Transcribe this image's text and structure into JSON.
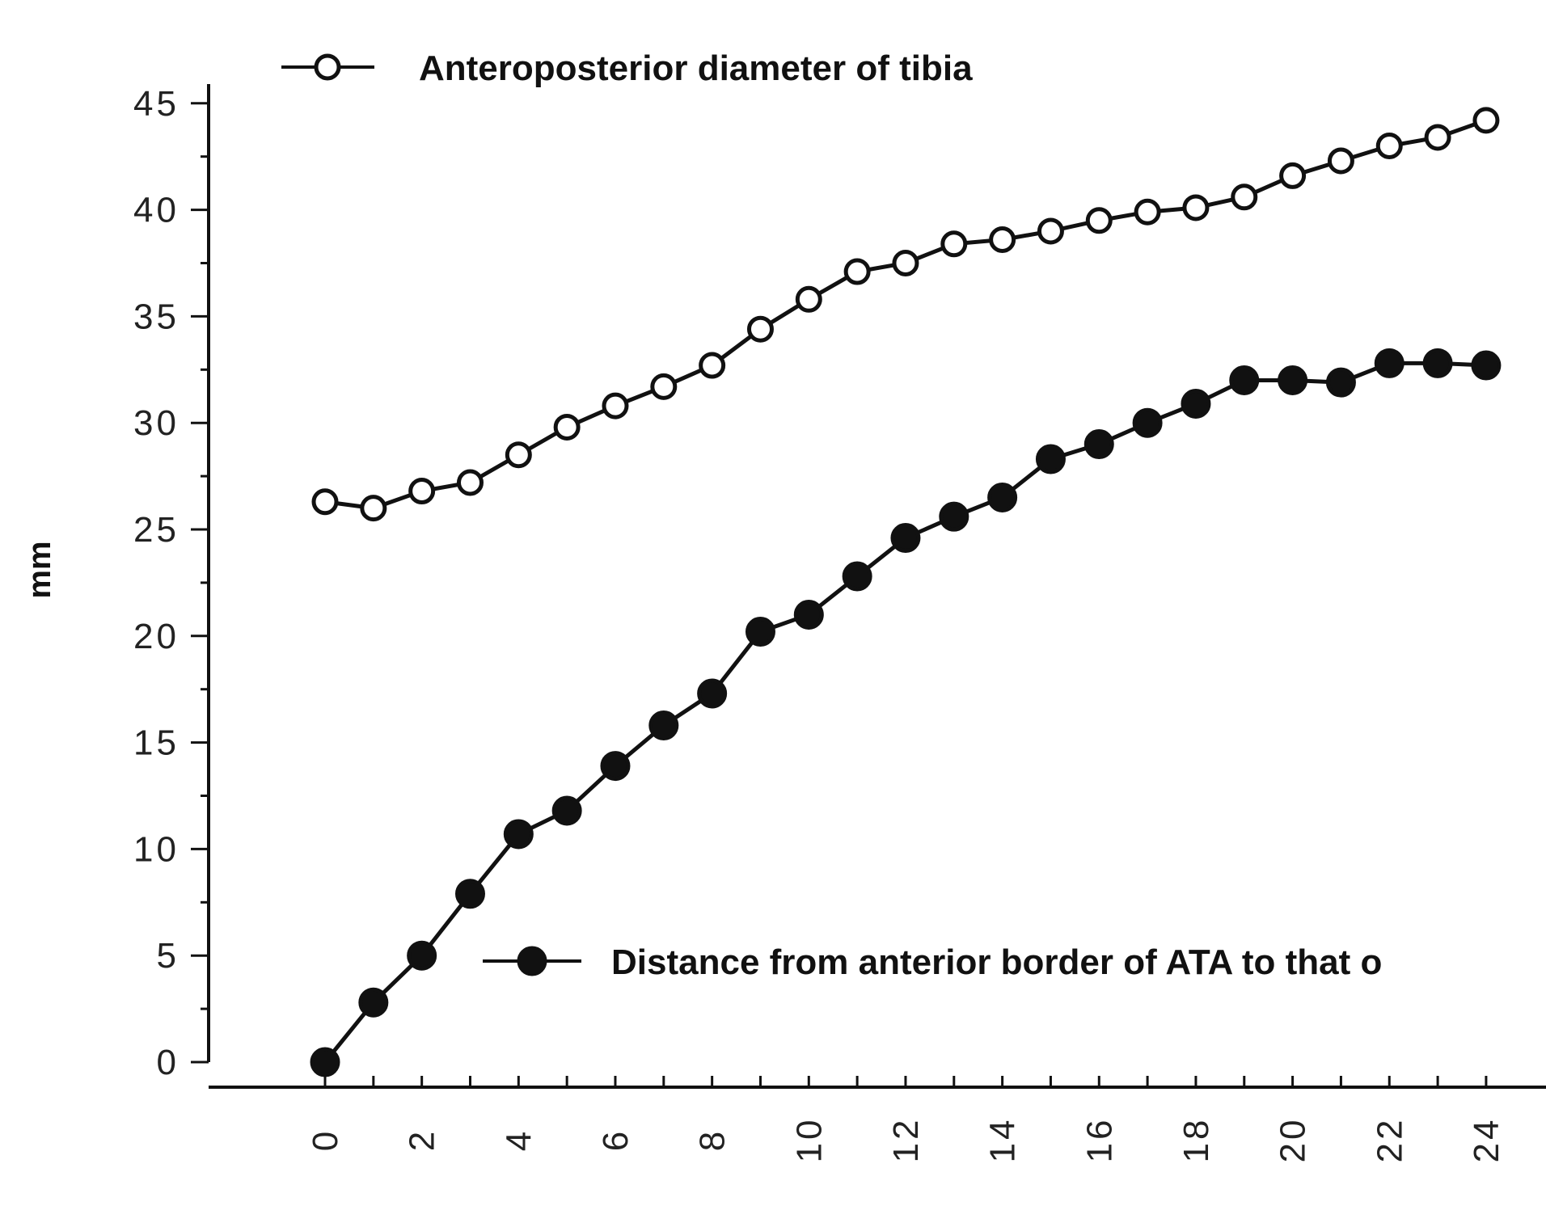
{
  "chart_data": {
    "type": "line",
    "title": "",
    "xlabel": "",
    "ylabel": "mm",
    "ylim": [
      0,
      45
    ],
    "xlim": [
      0,
      24
    ],
    "yticks": [
      0,
      5,
      10,
      15,
      20,
      25,
      30,
      35,
      40,
      45
    ],
    "xticks": [
      0,
      2,
      4,
      6,
      8,
      10,
      12,
      14,
      16,
      18,
      20,
      22,
      24
    ],
    "grid": false,
    "x": [
      0,
      1,
      2,
      3,
      4,
      5,
      6,
      7,
      8,
      9,
      10,
      11,
      12,
      13,
      14,
      15,
      16,
      17,
      18,
      19,
      20,
      21,
      22,
      23,
      24
    ],
    "series": [
      {
        "name": "Anteroposterior diameter of tibia",
        "marker": "open-circle",
        "values": [
          26.3,
          26.0,
          26.8,
          27.2,
          28.5,
          29.8,
          30.8,
          31.7,
          32.7,
          34.4,
          35.8,
          37.1,
          37.5,
          38.4,
          38.6,
          39.0,
          39.5,
          39.9,
          40.1,
          40.6,
          41.6,
          42.3,
          43.0,
          43.4,
          44.2
        ]
      },
      {
        "name": "Distance from anterior border of ATA to that o",
        "marker": "filled-circle",
        "values": [
          0.0,
          2.8,
          5.0,
          7.9,
          10.7,
          11.8,
          13.9,
          15.8,
          17.3,
          20.2,
          21.0,
          22.8,
          24.6,
          25.6,
          26.5,
          28.3,
          29.0,
          30.0,
          30.9,
          32.0,
          32.0,
          31.9,
          32.8,
          32.8,
          32.7
        ]
      }
    ],
    "legend": [
      {
        "label": "Anteroposterior diameter of tibia",
        "marker": "open-circle",
        "position": "top"
      },
      {
        "label": "Distance from anterior border of ATA to that o",
        "marker": "filled-circle",
        "position": "bottom-right"
      }
    ]
  },
  "colors": {
    "line": "#111111",
    "background": "#ffffff"
  }
}
